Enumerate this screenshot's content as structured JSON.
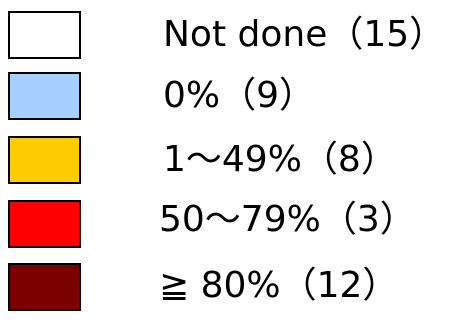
{
  "chart_data": {
    "type": "legend",
    "entries": [
      {
        "label": "Not done（15）",
        "count": 15,
        "color": "#ffffff"
      },
      {
        "label": "0%（9）",
        "count": 9,
        "color": "#a6cfff"
      },
      {
        "label": "1～49%（8）",
        "count": 8,
        "color": "#ffcc00"
      },
      {
        "label": "50～79%（3）",
        "count": 3,
        "color": "#ff0000"
      },
      {
        "label": "≧ 80%（12）",
        "count": 12,
        "color": "#7a0000"
      }
    ]
  }
}
